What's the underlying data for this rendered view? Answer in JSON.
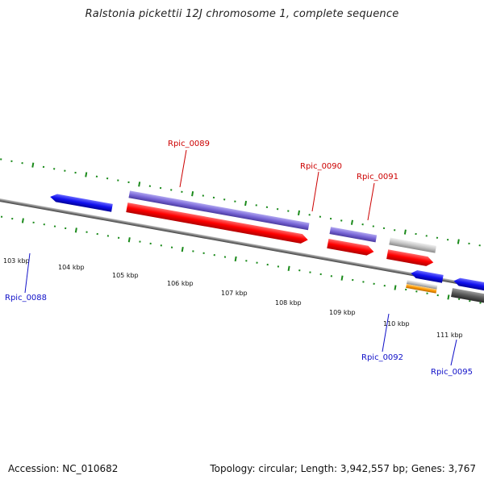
{
  "title": "Ralstonia pickettii 12J chromosome 1, complete sequence",
  "footer": {
    "accession": "Accession: NC_010682",
    "topology": "Topology: circular; Length: 3,942,557 bp; Genes: 3,767"
  },
  "ticks": [
    "103 kbp",
    "104 kbp",
    "105 kbp",
    "106 kbp",
    "107 kbp",
    "108 kbp",
    "109 kbp",
    "110 kbp",
    "111 kbp"
  ],
  "genes": [
    {
      "label": "Rpic_0088",
      "color": "#1010c8"
    },
    {
      "label": "Rpic_0089",
      "color": "#cc0000"
    },
    {
      "label": "Rpic_0090",
      "color": "#cc0000"
    },
    {
      "label": "Rpic_0091",
      "color": "#cc0000"
    },
    {
      "label": "Rpic_0092",
      "color": "#1010c8"
    },
    {
      "label": "Rpic_0095",
      "color": "#1010c8"
    }
  ],
  "colors": {
    "backbone": "#8a8a8a",
    "tick": "#1a8a1a",
    "forward_cds": "#ff1010",
    "reverse_cds": "#1515e0",
    "forward_gene": "#7b6cd0",
    "pseudo": "#c0c0c0",
    "rna": "#ff9900",
    "dark": "#555555"
  }
}
